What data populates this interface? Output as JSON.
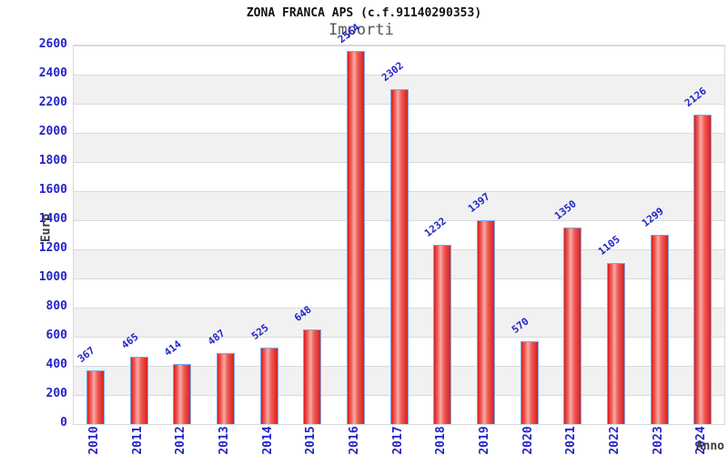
{
  "chart_data": {
    "type": "bar",
    "title": "ZONA FRANCA APS (c.f.91140290353)",
    "subtitle": "Importi",
    "xlabel": "Anno",
    "ylabel": "Euro",
    "categories": [
      "2010",
      "2011",
      "2012",
      "2013",
      "2014",
      "2015",
      "2016",
      "2017",
      "2018",
      "2019",
      "2020",
      "2021",
      "2022",
      "2023",
      "2024"
    ],
    "values": [
      367,
      465,
      414,
      487,
      525,
      648,
      2564,
      2302,
      1232,
      1397,
      570,
      1350,
      1105,
      1299,
      2126
    ],
    "yticks": [
      0,
      200,
      400,
      600,
      800,
      1000,
      1200,
      1400,
      1600,
      1800,
      2000,
      2200,
      2400,
      2600
    ],
    "ylim": [
      0,
      2600
    ],
    "grid": true,
    "legend": "none",
    "band_fill": "alternating horizontal stripes",
    "colors": {
      "axis_text": "#2424c8",
      "bar_dark": "#d81f1f",
      "bar_light": "#f8aaa5",
      "bar_border": "#7fa9e3",
      "band_gray": "#f1f1f1",
      "gridline": "#dadada",
      "title_text": "#111111",
      "subtitle_text": "#555555",
      "axis_title_text": "#3a3a3a",
      "background": "#ffffff"
    }
  }
}
